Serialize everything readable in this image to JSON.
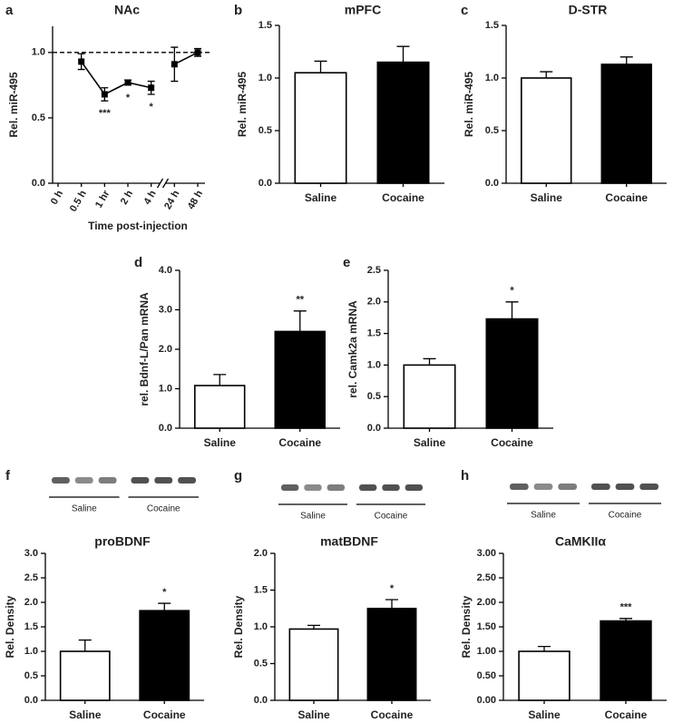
{
  "chart_data": [
    {
      "type": "line",
      "panel": "a",
      "title": "NAc",
      "xlabel": "Time post-injection",
      "ylabel": "Rel. miR-495",
      "categories": [
        "0 h",
        "0.5 h",
        "1 hr",
        "2 h",
        "4 h",
        "24 h",
        "48 h"
      ],
      "values": [
        null,
        0.93,
        0.68,
        0.77,
        0.73,
        0.91,
        1.0
      ],
      "errors": [
        null,
        0.06,
        0.05,
        0.02,
        0.05,
        0.13,
        0.03
      ],
      "axis_break": 4,
      "reference_line": 1.0,
      "color": "#000000",
      "ylim": [
        0,
        1.2
      ],
      "yticks": [
        {
          "value": 0,
          "label": "0.0"
        },
        0.5,
        {
          "value": 1,
          "label": "1.0"
        }
      ],
      "annotations": [
        {
          "category": "1 hr",
          "text": "***"
        },
        {
          "category": "2 h",
          "text": "*"
        },
        {
          "category": "4 h",
          "text": "*"
        }
      ]
    },
    {
      "type": "bar",
      "panel": "b",
      "title": "mPFC",
      "ylabel": "Rel. miR-495",
      "categories": [
        "Saline",
        "Cocaine"
      ],
      "values": [
        1.05,
        1.15
      ],
      "errors": [
        0.11,
        0.15
      ],
      "colors": [
        "#ffffff",
        "#000000"
      ],
      "ylim": [
        0,
        1.5
      ],
      "yticks": [
        {
          "value": 0,
          "label": "0.0"
        },
        0.5,
        {
          "value": 1,
          "label": "1.0"
        },
        1.5
      ]
    },
    {
      "type": "bar",
      "panel": "c",
      "title": "D-STR",
      "ylabel": "Rel. miR-495",
      "categories": [
        "Saline",
        "Cocaine"
      ],
      "values": [
        1.0,
        1.13
      ],
      "errors": [
        0.06,
        0.07
      ],
      "colors": [
        "#ffffff",
        "#000000"
      ],
      "ylim": [
        0,
        1.5
      ],
      "yticks": [
        {
          "value": 0,
          "label": "0.0"
        },
        0.5,
        {
          "value": 1,
          "label": "1.0"
        },
        1.5
      ]
    },
    {
      "type": "bar",
      "panel": "d",
      "ylabel": "rel. Bdnf-L/Pan mRNA",
      "categories": [
        "Saline",
        "Cocaine"
      ],
      "values": [
        1.08,
        2.45
      ],
      "errors": [
        0.28,
        0.52
      ],
      "colors": [
        "#ffffff",
        "#000000"
      ],
      "ylim": [
        0,
        4
      ],
      "yticks": [
        {
          "value": 0,
          "label": "0.0"
        },
        {
          "value": 1,
          "label": "1.0"
        },
        {
          "value": 2,
          "label": "2.0"
        },
        {
          "value": 3,
          "label": "3.0"
        },
        {
          "value": 4,
          "label": "4.0"
        }
      ],
      "annotations": [
        {
          "category": "Cocaine",
          "text": "**"
        }
      ]
    },
    {
      "type": "bar",
      "panel": "e",
      "ylabel": "rel. Camk2a mRNA",
      "categories": [
        "Saline",
        "Cocaine"
      ],
      "values": [
        1.0,
        1.73
      ],
      "errors": [
        0.1,
        0.27
      ],
      "colors": [
        "#ffffff",
        "#000000"
      ],
      "ylim": [
        0,
        2.5
      ],
      "yticks": [
        {
          "value": 0,
          "label": "0.0"
        },
        0.5,
        {
          "value": 1,
          "label": "1.0"
        },
        1.5,
        {
          "value": 2,
          "label": "2.0"
        },
        2.5
      ],
      "annotations": [
        {
          "category": "Cocaine",
          "text": "*"
        }
      ]
    },
    {
      "type": "bar",
      "panel": "f",
      "title": "proBDNF",
      "ylabel": "Rel. Density",
      "blot_labels": [
        "Saline",
        "Cocaine"
      ],
      "categories": [
        "Saline",
        "Cocaine"
      ],
      "values": [
        1.0,
        1.83
      ],
      "errors": [
        0.23,
        0.15
      ],
      "colors": [
        "#ffffff",
        "#000000"
      ],
      "ylim": [
        0,
        3
      ],
      "yticks": [
        {
          "value": 0,
          "label": "0.0"
        },
        0.5,
        {
          "value": 1,
          "label": "1.0"
        },
        1.5,
        {
          "value": 2,
          "label": "2.0"
        },
        2.5,
        {
          "value": 3,
          "label": "3.0"
        }
      ],
      "annotations": [
        {
          "category": "Cocaine",
          "text": "*"
        }
      ]
    },
    {
      "type": "bar",
      "panel": "g",
      "title": "matBDNF",
      "ylabel": "Rel. Density",
      "blot_labels": [
        "Saline",
        "Cocaine"
      ],
      "categories": [
        "Saline",
        "Cocaine"
      ],
      "values": [
        0.97,
        1.25
      ],
      "errors": [
        0.05,
        0.12
      ],
      "colors": [
        "#ffffff",
        "#000000"
      ],
      "ylim": [
        0,
        2
      ],
      "yticks": [
        {
          "value": 0,
          "label": "0.0"
        },
        0.5,
        {
          "value": 1,
          "label": "1.0"
        },
        1.5,
        {
          "value": 2,
          "label": "2.0"
        }
      ],
      "annotations": [
        {
          "category": "Cocaine",
          "text": "*"
        }
      ]
    },
    {
      "type": "bar",
      "panel": "h",
      "title": "CaMKIIα",
      "ylabel": "Rel. Density",
      "blot_labels": [
        "Saline",
        "Cocaine"
      ],
      "categories": [
        "Saline",
        "Cocaine"
      ],
      "values": [
        1.0,
        1.62
      ],
      "errors": [
        0.1,
        0.05
      ],
      "colors": [
        "#ffffff",
        "#000000"
      ],
      "ylim": [
        0,
        3
      ],
      "yticks": [
        {
          "value": 0,
          "label": "0.00"
        },
        {
          "value": 0.5,
          "label": "0.50"
        },
        {
          "value": 1,
          "label": "1.00"
        },
        {
          "value": 1.5,
          "label": "1.50"
        },
        {
          "value": 2,
          "label": "2.00"
        },
        {
          "value": 2.5,
          "label": "2.50"
        },
        {
          "value": 3,
          "label": "3.00"
        }
      ],
      "annotations": [
        {
          "category": "Cocaine",
          "text": "***"
        }
      ]
    }
  ]
}
